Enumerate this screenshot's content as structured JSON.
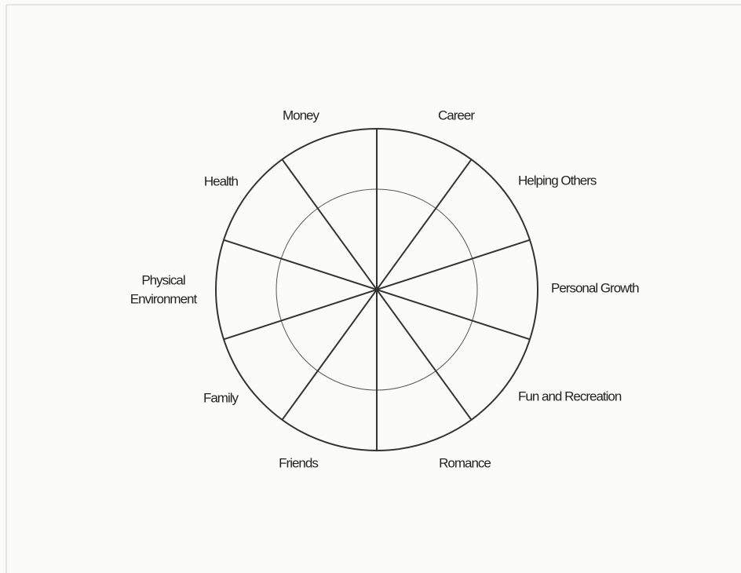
{
  "diagram": {
    "type": "wheel",
    "segments": [
      {
        "label": "Money"
      },
      {
        "label": "Career"
      },
      {
        "label": "Helping Others"
      },
      {
        "label": "Personal Growth"
      },
      {
        "label": "Fun and Recreation"
      },
      {
        "label": "Romance"
      },
      {
        "label": "Friends"
      },
      {
        "label": "Family"
      },
      {
        "label": [
          "Physical",
          "Environment"
        ]
      },
      {
        "label": "Health"
      }
    ]
  }
}
